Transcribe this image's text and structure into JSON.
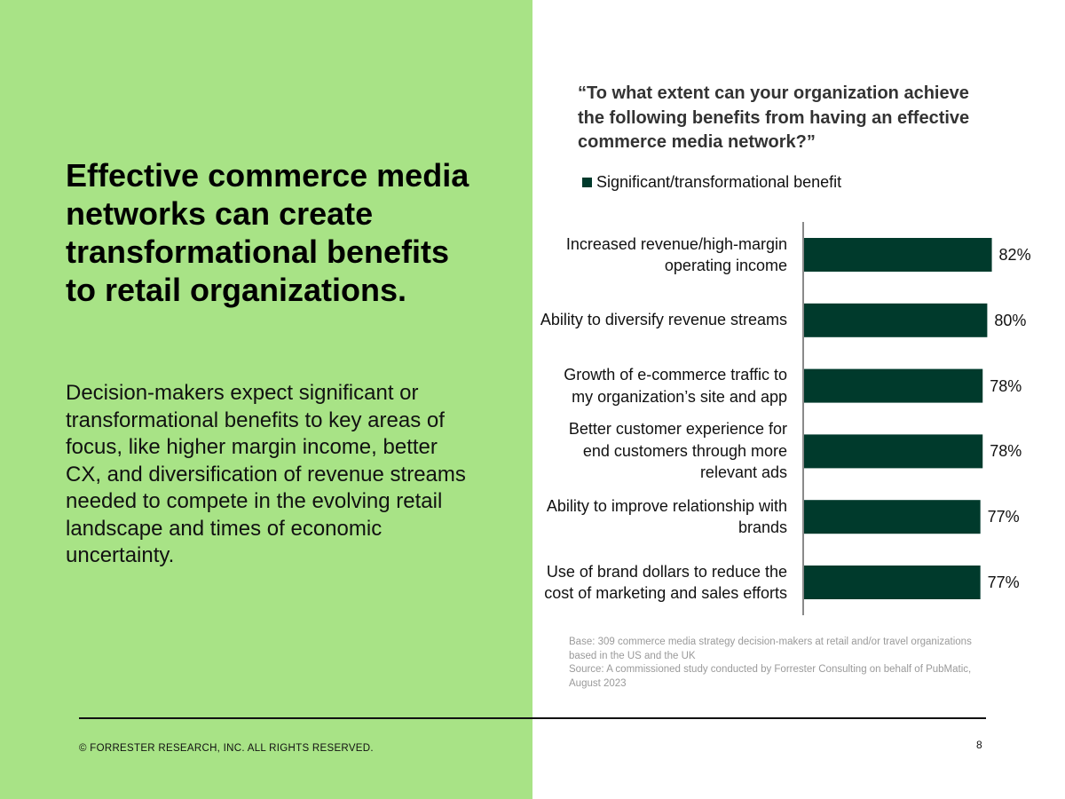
{
  "slide": {
    "headline": "Effective commerce media networks can create transformational benefits to retail organizations.",
    "body": "Decision-makers expect significant or transformational benefits to key areas of focus, like higher margin income, better CX, and diversification of revenue streams needed to compete in the evolving retail landscape and times of economic uncertainty.",
    "question": "“To what extent can your organization achieve the following benefits from having an effective commerce media network?”",
    "base_note": "Base: 309 commerce media strategy decision-makers at retail and/or travel organizations based in the US and the UK",
    "source_note": "Source: A commissioned study conducted by Forrester Consulting on behalf of PubMatic, August 2023",
    "copyright": "© FORRESTER RESEARCH, INC. ALL RIGHTS RESERVED.",
    "page_number": "8"
  },
  "colors": {
    "panel": "#a8e386",
    "bar": "#003a2c"
  },
  "chart_data": {
    "type": "bar",
    "orientation": "horizontal",
    "legend_position": "top-left",
    "grid": false,
    "xlim": [
      0,
      100
    ],
    "categories": [
      "Increased revenue/high-margin operating income",
      "Ability to diversify revenue streams",
      "Growth of e-commerce traffic to my organization’s site and app",
      "Better customer experience for end customers through more relevant ads",
      "Ability to improve relationship with brands",
      "Use of brand dollars to reduce the cost of marketing and sales efforts"
    ],
    "series": [
      {
        "name": "Significant/transformational benefit",
        "values": [
          82,
          80,
          78,
          78,
          77,
          77
        ],
        "labels": [
          "82%",
          "80%",
          "78%",
          "78%",
          "77%",
          "77%"
        ]
      }
    ]
  }
}
